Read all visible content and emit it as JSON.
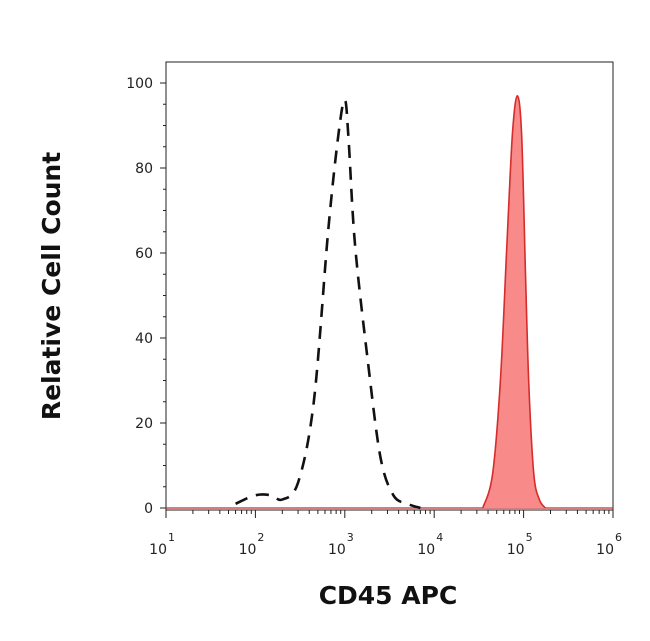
{
  "chart_data": {
    "type": "area",
    "xlabel": "CD45 APC",
    "ylabel": "Relative Cell Count",
    "x_scale": "log",
    "xlim": [
      10,
      1000000
    ],
    "ylim": [
      0,
      100
    ],
    "x_ticks": [
      {
        "value": 10,
        "base": "10",
        "exp": "1"
      },
      {
        "value": 100,
        "base": "10",
        "exp": "2"
      },
      {
        "value": 1000,
        "base": "10",
        "exp": "3"
      },
      {
        "value": 10000,
        "base": "10",
        "exp": "4"
      },
      {
        "value": 100000,
        "base": "10",
        "exp": "5"
      },
      {
        "value": 1000000,
        "base": "10",
        "exp": "6"
      }
    ],
    "y_ticks": [
      "0",
      "20",
      "40",
      "60",
      "80",
      "100"
    ],
    "grid": false,
    "series": [
      {
        "style": "dashed",
        "color": "#111111",
        "x": [
          60,
          100,
          150,
          200,
          300,
          450,
          650,
          850,
          1000,
          1100,
          1300,
          1800,
          2500,
          3500,
          5000,
          7000
        ],
        "y": [
          1,
          3,
          3,
          2,
          6,
          25,
          65,
          88,
          96,
          87,
          62,
          35,
          12,
          3,
          1,
          0
        ]
      },
      {
        "style": "filled",
        "color": "#d62c2c",
        "fill": "#f88a8a",
        "x": [
          35000,
          45000,
          55000,
          65000,
          75000,
          85000,
          95000,
          105000,
          115000,
          130000,
          150000,
          175000
        ],
        "y": [
          0,
          8,
          30,
          62,
          88,
          97,
          88,
          55,
          28,
          8,
          2,
          0
        ]
      }
    ]
  }
}
